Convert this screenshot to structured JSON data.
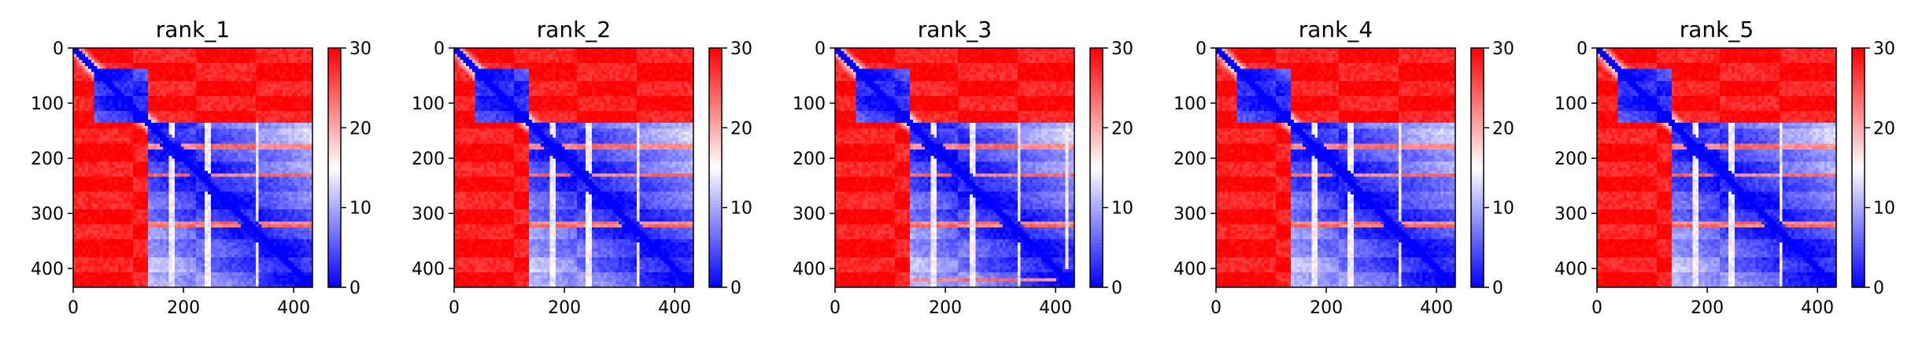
{
  "chart_data": [
    {
      "type": "heatmap",
      "title": "rank_1",
      "xlim": [
        0,
        434
      ],
      "ylim": [
        434,
        0
      ],
      "xticks": [
        0,
        200,
        400
      ],
      "yticks": [
        0,
        100,
        200,
        300,
        400
      ],
      "colorbar": {
        "min": 0,
        "max": 30,
        "ticks": [
          0,
          10,
          20,
          30
        ],
        "colormap": "bwr"
      },
      "low_value_blocks": [
        [
          0,
          43
        ],
        [
          40,
          136
        ],
        [
          40,
          136
        ],
        [
          136,
          434
        ],
        [
          136,
          434
        ]
      ],
      "band_stripes": [
        180,
        230,
        320
      ],
      "vertical_stripes": [
        180,
        245,
        335
      ],
      "cross_block_pairs": [
        [
          0,
          10,
          40,
          136
        ]
      ]
    },
    {
      "type": "heatmap",
      "title": "rank_2",
      "xlim": [
        0,
        434
      ],
      "ylim": [
        434,
        0
      ],
      "xticks": [
        0,
        200,
        400
      ],
      "yticks": [
        0,
        100,
        200,
        300,
        400
      ],
      "colorbar": {
        "min": 0,
        "max": 30,
        "ticks": [
          0,
          10,
          20,
          30
        ],
        "colormap": "bwr"
      },
      "band_stripes": [
        180,
        230,
        320
      ],
      "vertical_stripes": [
        180,
        245,
        335
      ]
    },
    {
      "type": "heatmap",
      "title": "rank_3",
      "xlim": [
        0,
        434
      ],
      "ylim": [
        434,
        0
      ],
      "xticks": [
        0,
        200,
        400
      ],
      "yticks": [
        0,
        100,
        200,
        300,
        400
      ],
      "colorbar": {
        "min": 0,
        "max": 30,
        "ticks": [
          0,
          10,
          20,
          30
        ],
        "colormap": "bwr"
      },
      "band_stripes": [
        180,
        230,
        320,
        420
      ],
      "vertical_stripes": [
        180,
        250,
        335,
        420
      ]
    },
    {
      "type": "heatmap",
      "title": "rank_4",
      "xlim": [
        0,
        434
      ],
      "ylim": [
        434,
        0
      ],
      "xticks": [
        0,
        200,
        400
      ],
      "yticks": [
        0,
        100,
        200,
        300,
        400
      ],
      "colorbar": {
        "min": 0,
        "max": 30,
        "ticks": [
          0,
          10,
          20,
          30
        ],
        "colormap": "bwr"
      },
      "band_stripes": [
        180,
        230,
        320
      ],
      "vertical_stripes": [
        180,
        245,
        335
      ]
    },
    {
      "type": "heatmap",
      "title": "rank_5",
      "xlim": [
        0,
        434
      ],
      "ylim": [
        434,
        0
      ],
      "xticks": [
        0,
        200,
        400
      ],
      "yticks": [
        0,
        100,
        200,
        300,
        400
      ],
      "colorbar": {
        "min": 0,
        "max": 30,
        "ticks": [
          0,
          10,
          20,
          30
        ],
        "colormap": "bwr"
      },
      "band_stripes": [
        180,
        230,
        320
      ],
      "vertical_stripes": [
        180,
        245,
        335
      ]
    }
  ],
  "structure": {
    "n_residues": 434,
    "blocks": [
      [
        0,
        40
      ],
      [
        40,
        136
      ],
      [
        136,
        434
      ]
    ],
    "low_value_blocks": [
      [
        40,
        136
      ],
      [
        136,
        434
      ]
    ],
    "diagonal_value": 0,
    "background_value": 30,
    "block_value": 2
  },
  "colors": {
    "low": "#0000ff",
    "mid": "#ffffff",
    "high": "#ff0000",
    "axis": "#000000"
  }
}
